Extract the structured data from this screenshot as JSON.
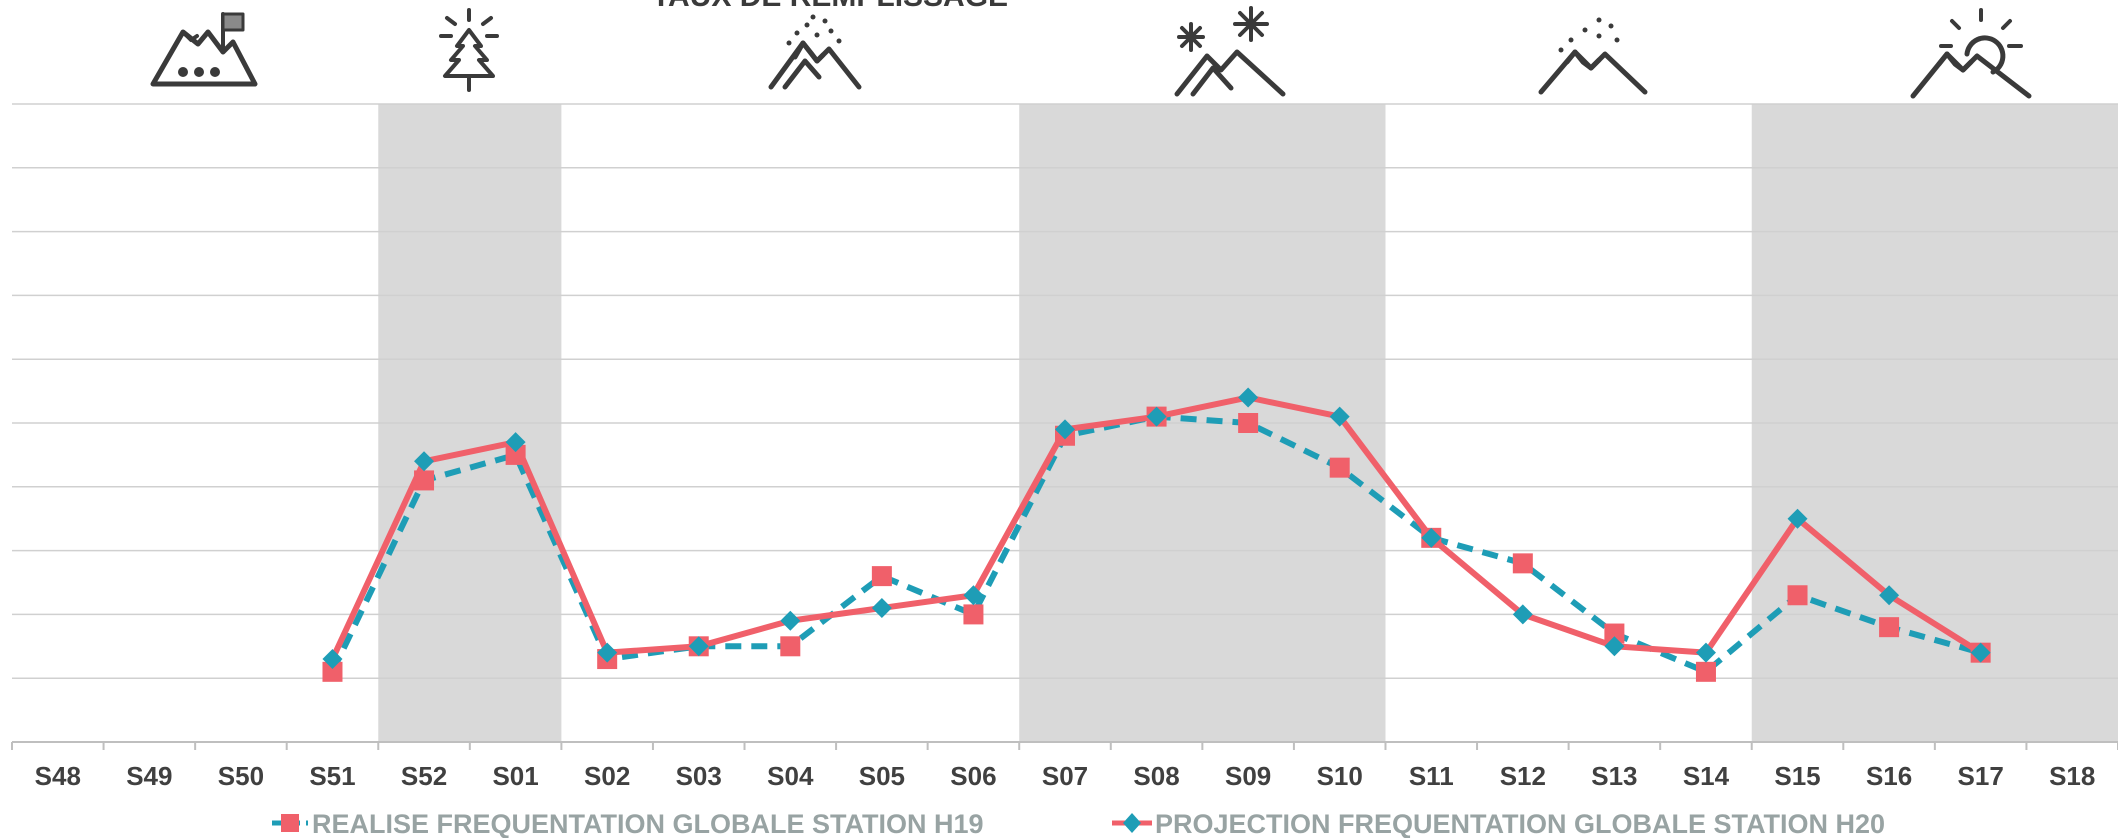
{
  "chart_data": {
    "type": "line",
    "title": "TAUX DE REMPLISSAGE",
    "categories": [
      "S48",
      "S49",
      "S50",
      "S51",
      "S52",
      "S01",
      "S02",
      "S03",
      "S04",
      "S05",
      "S06",
      "S07",
      "S08",
      "S09",
      "S10",
      "S11",
      "S12",
      "S13",
      "S14",
      "S15",
      "S16",
      "S17",
      "S18"
    ],
    "ylim": [
      0,
      100
    ],
    "grid": true,
    "legend_position": "bottom",
    "series": [
      {
        "name": "REALISE FREQUENTATION GLOBALE STATION H19",
        "color": "#f0606a",
        "line_color": "#1e9db6",
        "line_style": "dashed",
        "marker": "square",
        "values": [
          null,
          null,
          null,
          11,
          41,
          45,
          13,
          15,
          15,
          26,
          20,
          48,
          51,
          50,
          43,
          32,
          28,
          17,
          11,
          23,
          18,
          14,
          null
        ]
      },
      {
        "name": "PROJECTION FREQUENTATION GLOBALE STATION H20",
        "color": "#1e9db6",
        "line_color": "#f0606a",
        "line_style": "solid",
        "marker": "diamond",
        "values": [
          null,
          null,
          null,
          13,
          44,
          47,
          14,
          15,
          19,
          21,
          23,
          49,
          51,
          54,
          51,
          32,
          20,
          15,
          14,
          35,
          23,
          14,
          null
        ]
      }
    ],
    "highlight_ranges": [
      [
        "S52",
        "S01"
      ],
      [
        "S07",
        "S10"
      ],
      [
        "S15",
        "S18"
      ]
    ],
    "highlight_color": "#d9d9d9",
    "period_icons": [
      "mountain-flag-icon",
      "fir-tree-sun-icon",
      "mountain-snowfall-icon",
      "mountain-snowflakes-icon",
      "mountain-snowfall-icon",
      "mountain-sun-icon"
    ]
  }
}
